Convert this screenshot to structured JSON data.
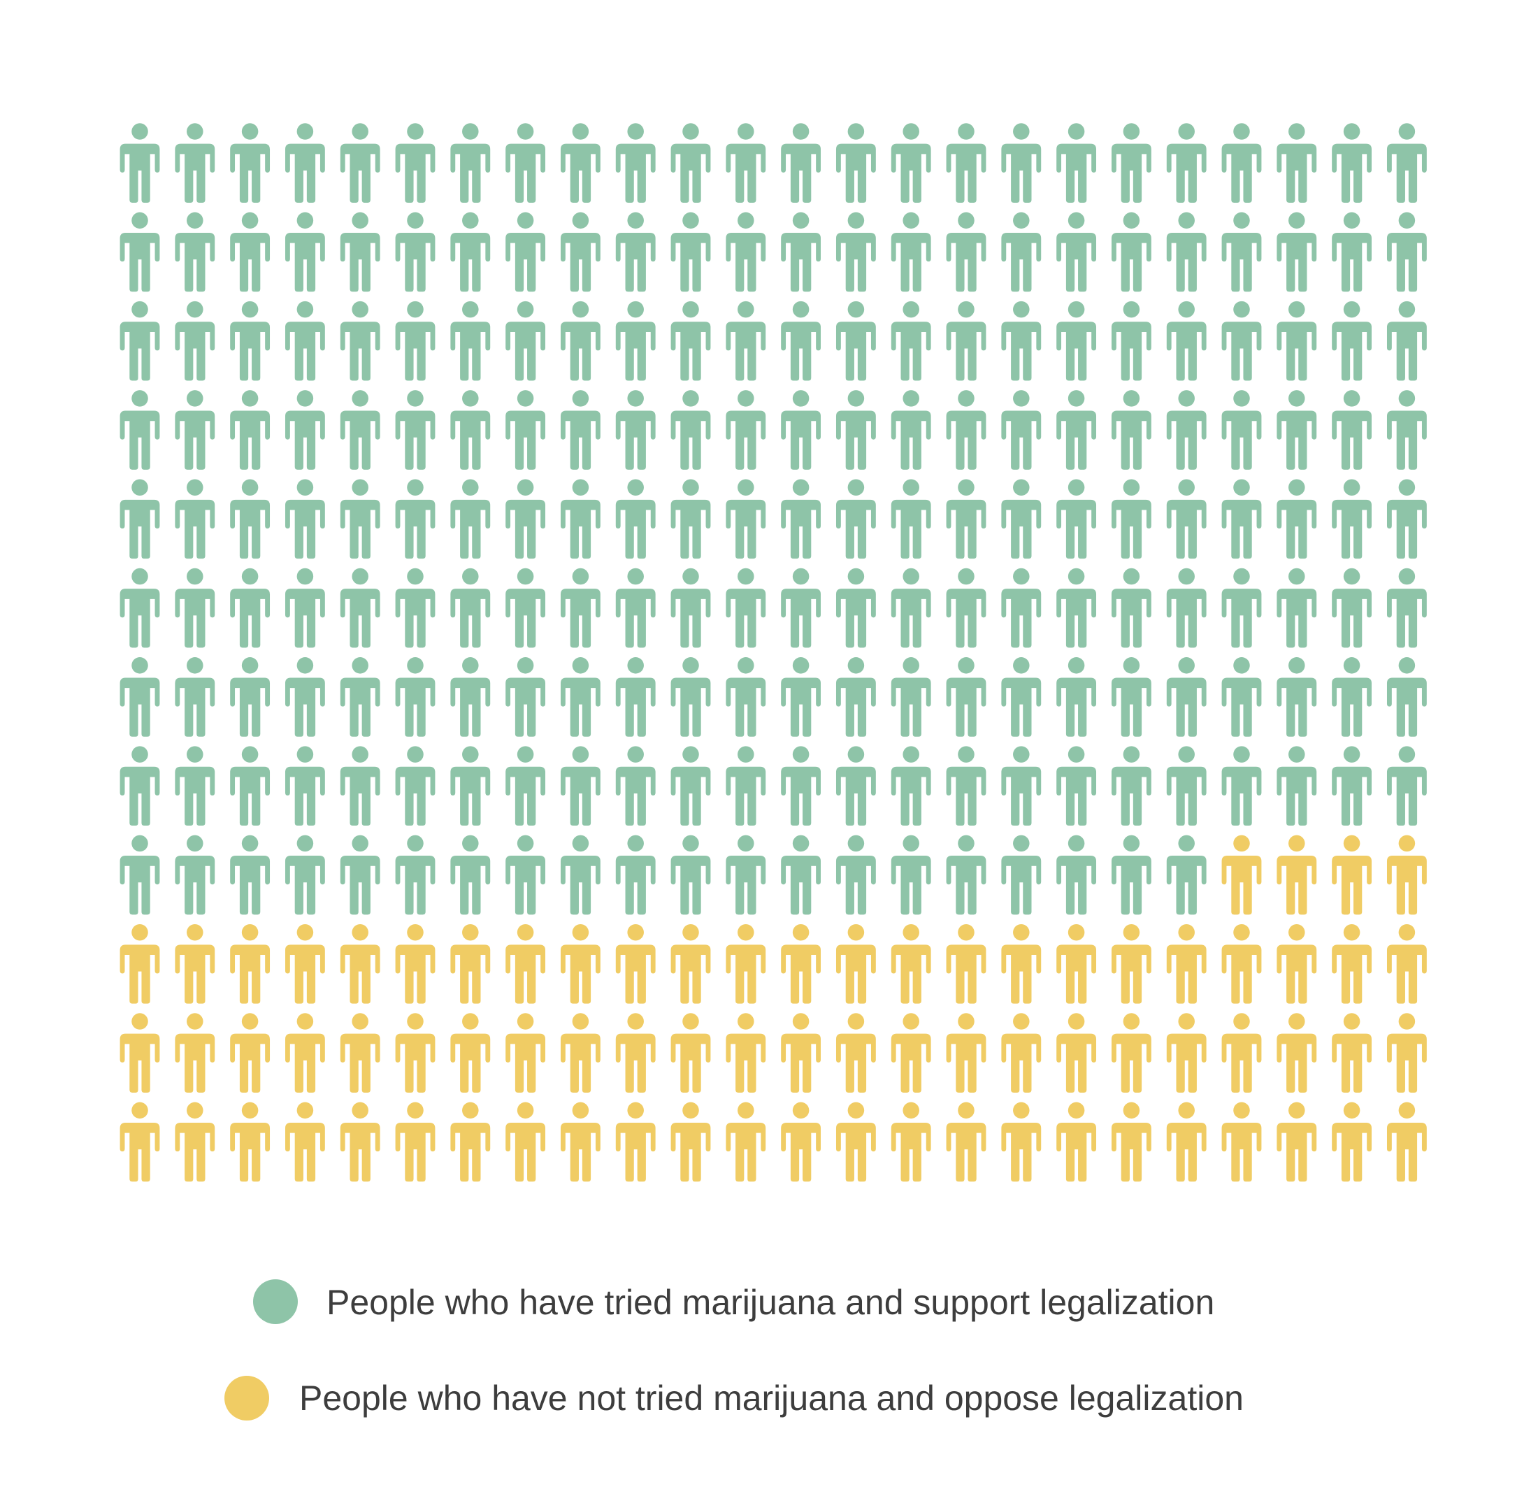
{
  "chart_data": {
    "type": "pictogram",
    "columns": 24,
    "rows": 12,
    "total_icons": 288,
    "icon": "person-icon",
    "fill_order": "row-major",
    "series": [
      {
        "name": "People who have tried marijuana and support legalization",
        "count": 212,
        "color": "#8ec4a8"
      },
      {
        "name": "People who have not tried marijuana and oppose legalization",
        "count": 76,
        "color": "#f0cc64"
      }
    ],
    "legend_position": "bottom-center"
  }
}
